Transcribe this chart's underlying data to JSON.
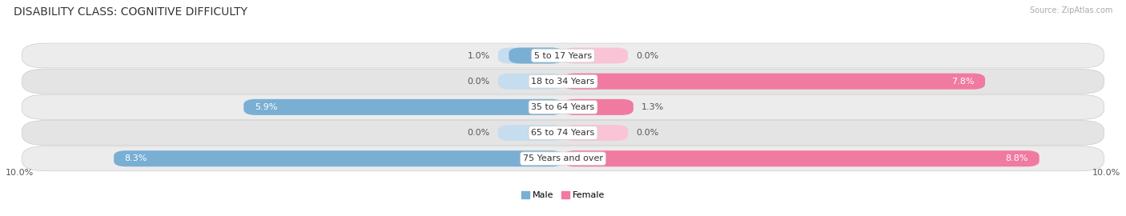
{
  "title": "DISABILITY CLASS: COGNITIVE DIFFICULTY",
  "source": "Source: ZipAtlas.com",
  "categories": [
    "5 to 17 Years",
    "18 to 34 Years",
    "35 to 64 Years",
    "65 to 74 Years",
    "75 Years and over"
  ],
  "male_values": [
    1.0,
    0.0,
    5.9,
    0.0,
    8.3
  ],
  "female_values": [
    0.0,
    7.8,
    1.3,
    0.0,
    8.8
  ],
  "max_val": 10.0,
  "male_color": "#7aafd4",
  "female_color": "#f07aa0",
  "male_color_light": "#c5ddef",
  "female_color_light": "#f9c4d5",
  "row_bg_odd": "#ececec",
  "row_bg_even": "#e4e4e4",
  "legend_male": "Male",
  "legend_female": "Female",
  "title_fontsize": 10,
  "label_fontsize": 8,
  "tick_fontsize": 8,
  "cat_fontsize": 8
}
